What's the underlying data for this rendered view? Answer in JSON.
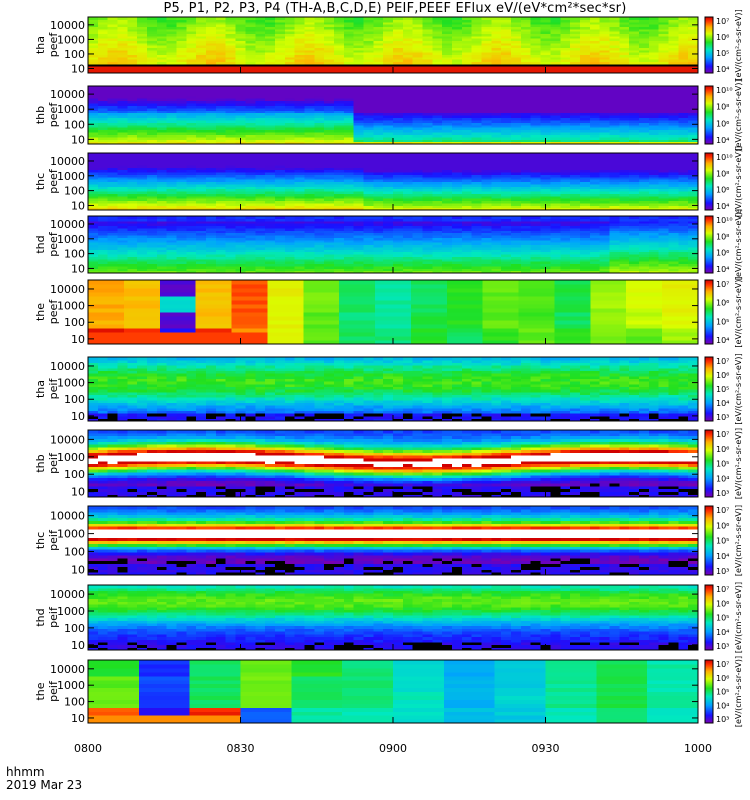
{
  "title": "P5, P1, P2, P3, P4 (TH-A,B,C,D,E) PEIF,PEEF EFlux eV/(eV*cm²*sec*sr)",
  "footer": {
    "xunits": "hhmm",
    "date": "2019 Mar 23"
  },
  "chart_data": {
    "type": "heatmap",
    "x_ticks": [
      "0800",
      "0830",
      "0900",
      "0930",
      "1000"
    ],
    "y_ticks": [
      "10",
      "100",
      "1000",
      "10000"
    ],
    "y_scale": "log",
    "panels": [
      {
        "ylabel": [
          "tha",
          "peef"
        ],
        "cbar_labels": [
          "10⁴",
          "10⁵",
          "10⁶",
          "10⁷"
        ],
        "pattern": "e_dense_a"
      },
      {
        "ylabel": [
          "thb",
          "peef"
        ],
        "cbar_labels": [
          "10⁴",
          "10⁶",
          "10⁸",
          "10¹⁰"
        ],
        "pattern": "e_dense_b"
      },
      {
        "ylabel": [
          "thc",
          "peef"
        ],
        "cbar_labels": [
          "10⁴",
          "10⁶",
          "10⁸",
          "10¹⁰"
        ],
        "pattern": "e_dense_c"
      },
      {
        "ylabel": [
          "thd",
          "peef"
        ],
        "cbar_labels": [
          "10⁴",
          "10⁶",
          "10⁸",
          "10¹⁰"
        ],
        "pattern": "e_dense_d"
      },
      {
        "ylabel": [
          "the",
          "peef"
        ],
        "cbar_labels": [
          "10⁴",
          "10⁵",
          "10⁶",
          "10⁷"
        ],
        "pattern": "e_blocky"
      },
      {
        "ylabel": [
          "tha",
          "peif"
        ],
        "cbar_labels": [
          "10³",
          "10⁴",
          "10⁵",
          "10⁶",
          "10⁷"
        ],
        "pattern": "i_a"
      },
      {
        "ylabel": [
          "thb",
          "peif"
        ],
        "cbar_labels": [
          "10³",
          "10⁴",
          "10⁵",
          "10⁶",
          "10⁷"
        ],
        "pattern": "i_b"
      },
      {
        "ylabel": [
          "thc",
          "peif"
        ],
        "cbar_labels": [
          "10³",
          "10⁴",
          "10⁵",
          "10⁶",
          "10⁷"
        ],
        "pattern": "i_c"
      },
      {
        "ylabel": [
          "thd",
          "peif"
        ],
        "cbar_labels": [
          "10³",
          "10⁴",
          "10⁵",
          "10⁶",
          "10⁷"
        ],
        "pattern": "i_d"
      },
      {
        "ylabel": [
          "the",
          "peif"
        ],
        "cbar_labels": [
          "10³",
          "10⁴",
          "10⁵",
          "10⁶",
          "10⁷"
        ],
        "pattern": "i_blocky"
      }
    ],
    "cbar_title_e": "[eV/(cm²-s-sr-eV)]",
    "cbar_title_i": "[eV/(cm²-s-sr-eV)]",
    "colormap": "rainbow"
  }
}
